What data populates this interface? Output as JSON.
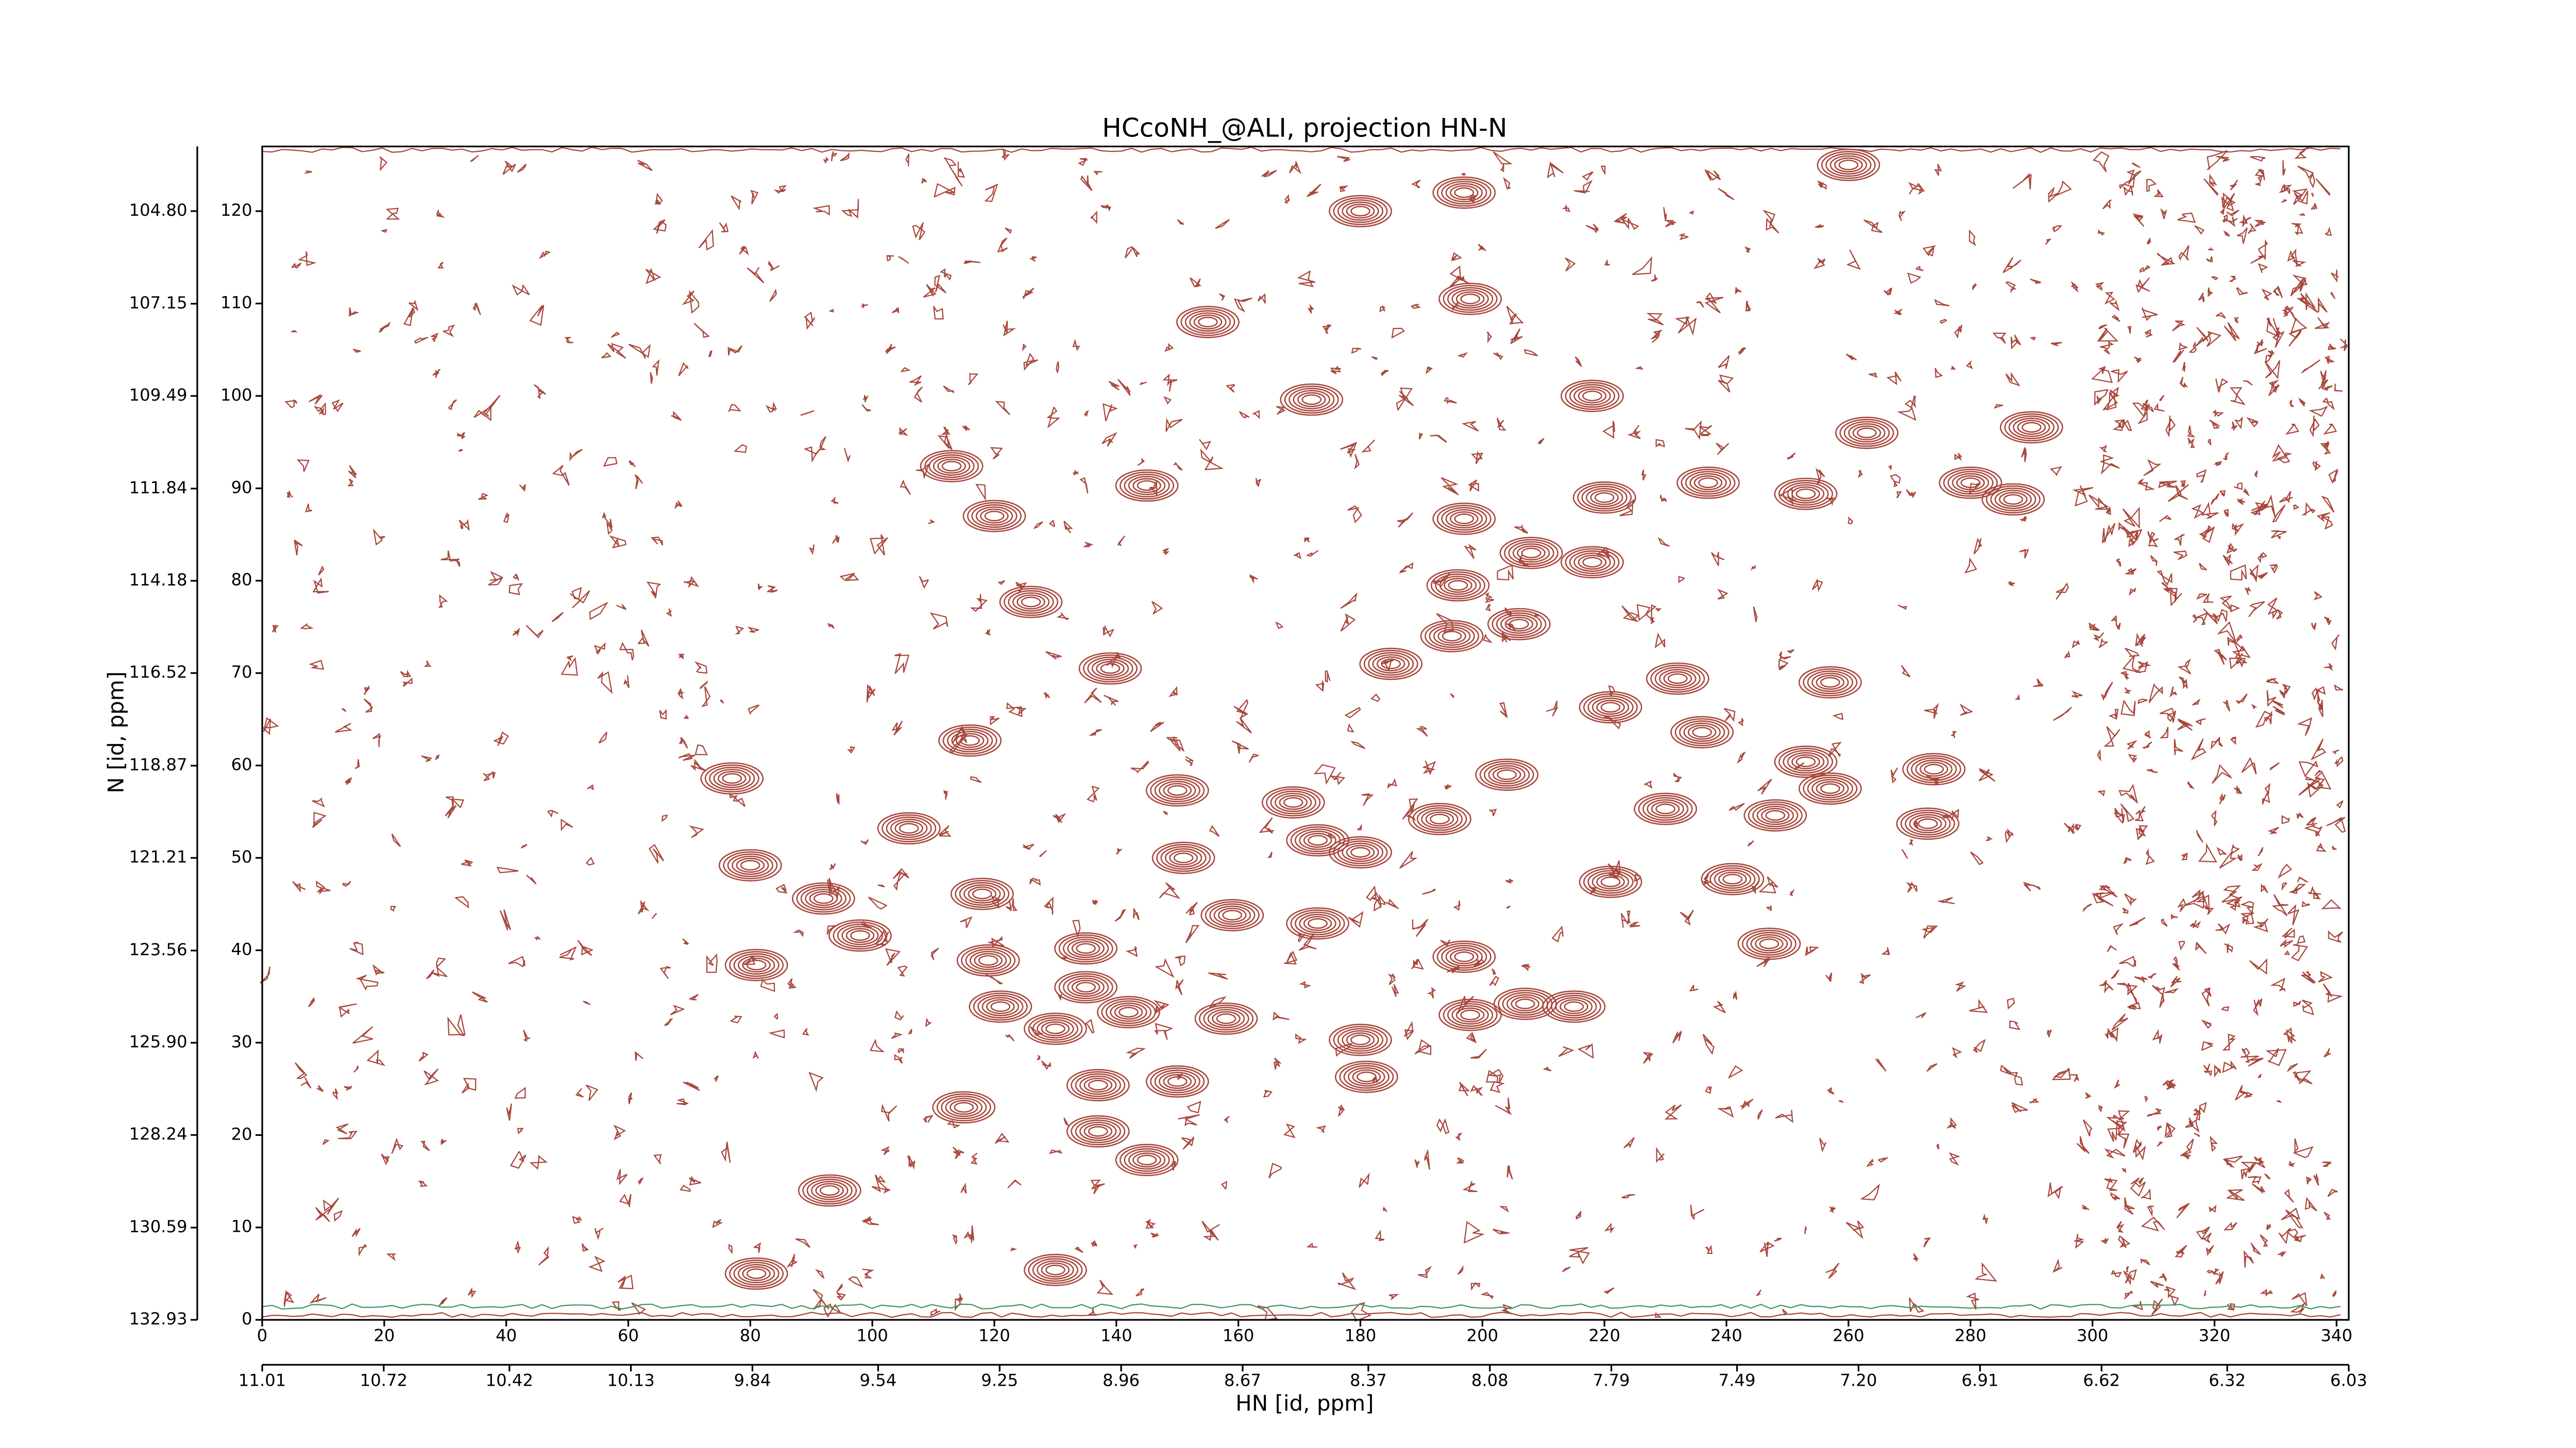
{
  "chart_data": {
    "type": "contour",
    "title": "HCcoNH_@ALI, projection HN-N",
    "xlabel": "HN [id, ppm]",
    "ylabel": "N [id, ppm]",
    "color": "#a8473c",
    "xlim": [
      0,
      342
    ],
    "ylim": [
      0,
      127
    ],
    "xticks": [
      0,
      20,
      40,
      60,
      80,
      100,
      120,
      140,
      160,
      180,
      200,
      220,
      240,
      260,
      280,
      300,
      320,
      340
    ],
    "yticks": [
      0,
      10,
      20,
      30,
      40,
      50,
      60,
      70,
      80,
      90,
      100,
      110,
      120
    ],
    "x2lim": [
      11.01,
      6.03
    ],
    "x2ticks": [
      11.01,
      10.72,
      10.42,
      10.13,
      9.84,
      9.54,
      9.25,
      8.96,
      8.67,
      8.37,
      8.08,
      7.79,
      7.49,
      {
        "value": 7.2,
        "label": "7.20"
      },
      6.91,
      6.62,
      6.32,
      6.03
    ],
    "y2lim": [
      132.93,
      103.16
    ],
    "y2ticks": [
      {
        "value": 104.8,
        "label": "104.80"
      },
      107.15,
      109.49,
      111.84,
      114.18,
      116.52,
      118.87,
      121.21,
      123.56,
      {
        "value": 125.9,
        "label": "125.90"
      },
      128.24,
      130.59,
      132.93
    ],
    "x": [
      197,
      260,
      180,
      198,
      155,
      172,
      218,
      113,
      145,
      220,
      237,
      253,
      263,
      290,
      287,
      280,
      197,
      120,
      208,
      218,
      126,
      196,
      195,
      206,
      139,
      185,
      257,
      232,
      221,
      236,
      116,
      274,
      253,
      257,
      204,
      77,
      150,
      169,
      230,
      248,
      273,
      106,
      173,
      180,
      193,
      151,
      80,
      241,
      221,
      118,
      92,
      98,
      159,
      173,
      135,
      119,
      247,
      197,
      81,
      135,
      121,
      142,
      158,
      198,
      207,
      215,
      130,
      180,
      181,
      150,
      137,
      115,
      137,
      145,
      93,
      130,
      81
    ],
    "values": [
      122,
      125,
      120,
      110.5,
      108,
      99.6,
      100,
      92.4,
      90.3,
      89,
      90.6,
      89.4,
      96,
      96.6,
      88.8,
      90.6,
      86.7,
      87,
      83,
      82,
      77.7,
      79.5,
      74,
      75.3,
      70.5,
      71,
      69,
      69.4,
      66.3,
      63.6,
      62.7,
      59.6,
      60.4,
      57.5,
      59,
      58.6,
      57.3,
      56,
      55.3,
      54.6,
      53.7,
      53.2,
      51.9,
      50.6,
      54.2,
      50,
      49.2,
      47.7,
      47.4,
      46.1,
      45.6,
      41.6,
      43.8,
      42.9,
      40.2,
      38.9,
      40.7,
      39.3,
      38.4,
      36,
      33.9,
      33.3,
      32.6,
      33,
      34.2,
      33.9,
      31.5,
      30.3,
      26.3,
      25.8,
      25.4,
      23,
      20.4,
      17.3,
      14,
      5.4,
      5
    ]
  }
}
